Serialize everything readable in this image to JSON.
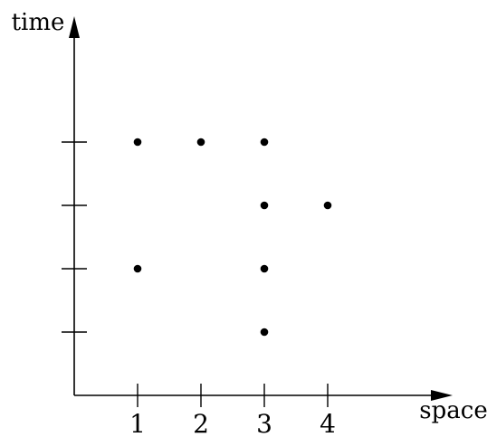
{
  "chart_data": {
    "type": "scatter",
    "xlabel": "space",
    "ylabel": "time",
    "x_ticks": [
      1,
      2,
      3,
      4
    ],
    "x_tick_labels": [
      "1",
      "2",
      "3",
      "4"
    ],
    "y_ticks": [
      1,
      2,
      3,
      4
    ],
    "y_tick_labels": [],
    "xlim": [
      0,
      6
    ],
    "ylim": [
      0,
      6
    ],
    "grid": false,
    "legend": "none",
    "points": [
      {
        "x": 1,
        "y": 4
      },
      {
        "x": 2,
        "y": 4
      },
      {
        "x": 3,
        "y": 4
      },
      {
        "x": 3,
        "y": 3
      },
      {
        "x": 4,
        "y": 3
      },
      {
        "x": 1,
        "y": 2
      },
      {
        "x": 3,
        "y": 2
      },
      {
        "x": 3,
        "y": 1
      }
    ]
  }
}
